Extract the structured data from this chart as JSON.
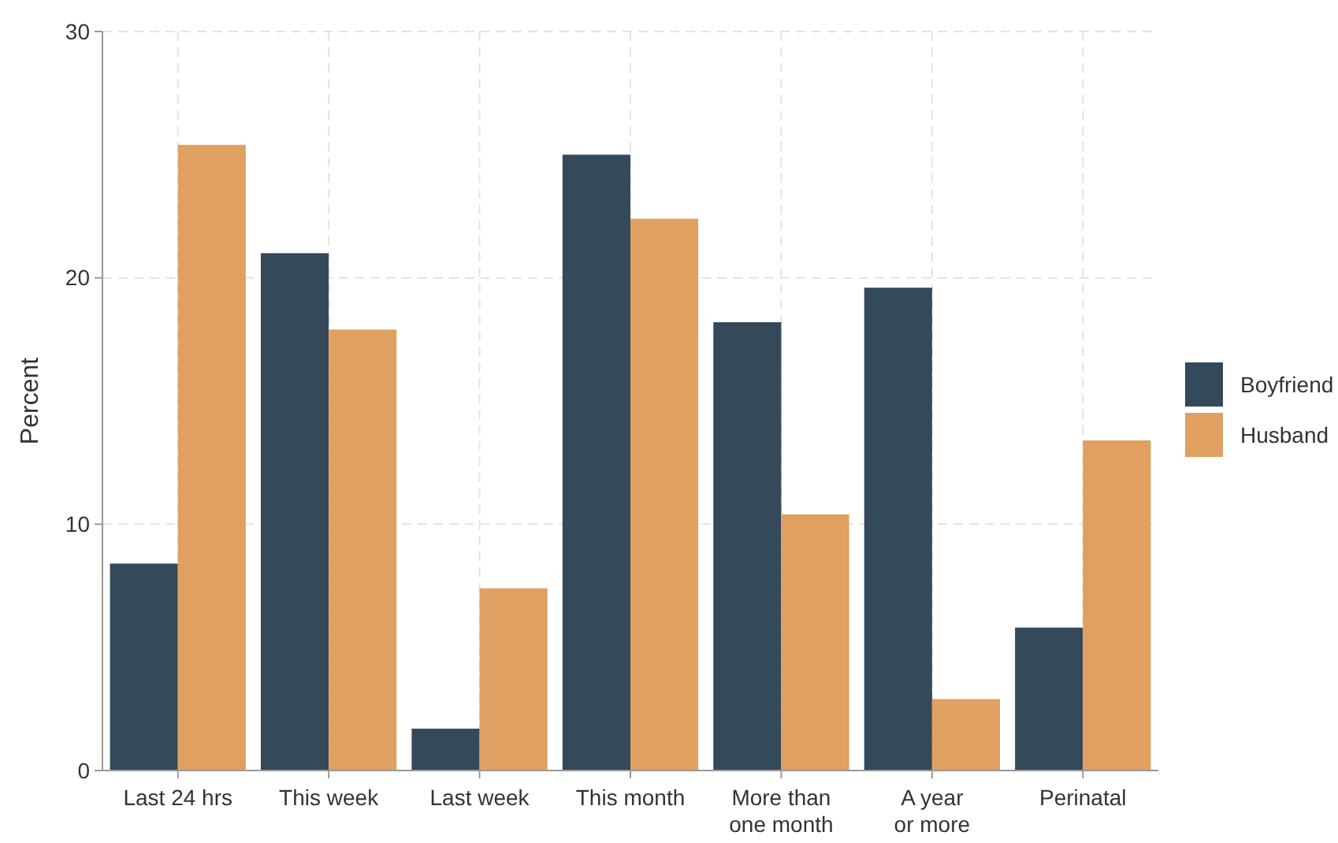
{
  "chart_data": {
    "type": "bar",
    "ylabel": "Percent",
    "categories": [
      "Last 24 hrs",
      "This week",
      "Last week",
      "This month",
      "More than\none month",
      "A year\nor more",
      "Perinatal"
    ],
    "series": [
      {
        "name": "Boyfriend",
        "color": "#34495a",
        "values": [
          8.4,
          21.0,
          1.7,
          25.0,
          18.2,
          19.6,
          5.8
        ]
      },
      {
        "name": "Husband",
        "color": "#e0a062",
        "values": [
          25.4,
          17.9,
          7.4,
          22.4,
          10.4,
          2.9,
          13.4
        ]
      }
    ],
    "ylim": [
      0,
      30
    ],
    "yticks": [
      0,
      10,
      20,
      30
    ],
    "grid": true,
    "legend": "right"
  }
}
